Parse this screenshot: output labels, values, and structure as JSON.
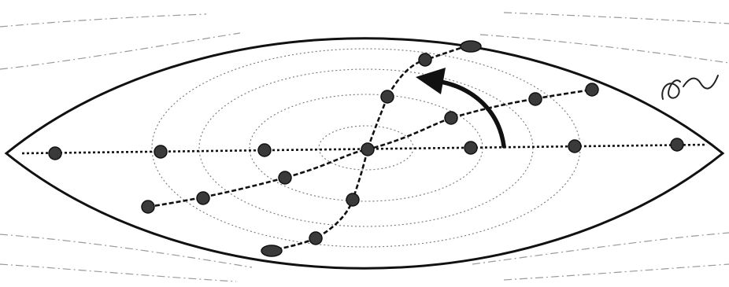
{
  "figure": {
    "handwritten_label": "θ̃"
  },
  "colors": {
    "background": "#ffffff",
    "ink": "#111111",
    "contour": "#777777",
    "far_field": "#9a9a9a",
    "node_fill": "#3a3a3a"
  }
}
